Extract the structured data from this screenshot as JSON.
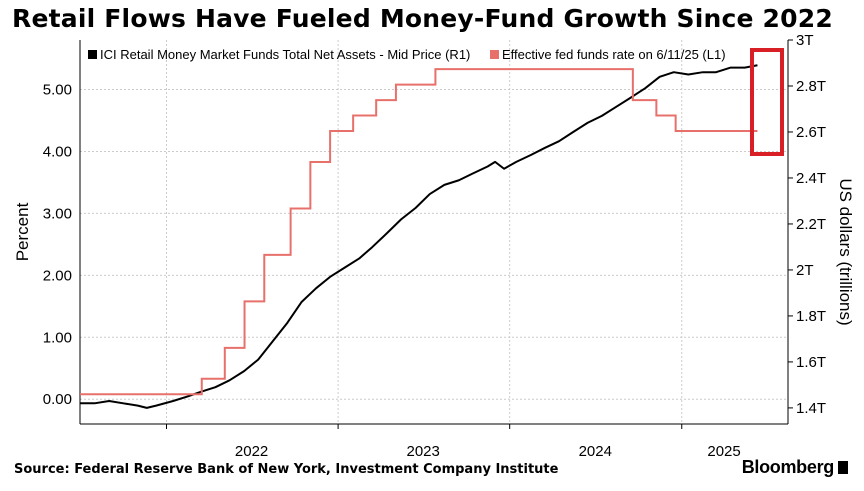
{
  "title": "Retail Flows Have Fueled Money-Fund Growth Since 2022",
  "source": "Source: Federal Reserve Bank of New York, Investment Company Institute",
  "brand": "Bloomberg",
  "colors": {
    "assets": "#000000",
    "fedfunds": "#e8706b",
    "highlight": "#d81f26",
    "grid": "#cccccc"
  },
  "chart_data": {
    "type": "line",
    "x_ticks": [
      "2022",
      "2023",
      "2024",
      "2025"
    ],
    "left_axis": {
      "label": "Percent",
      "ticks": [
        "0.00",
        "1.00",
        "2.00",
        "3.00",
        "4.00",
        "5.00"
      ],
      "range": [
        -0.4,
        5.8
      ]
    },
    "right_axis": {
      "label": "US dollars (trillions)",
      "ticks": [
        "1.4T",
        "1.6T",
        "1.8T",
        "2T",
        "2.2T",
        "2.4T",
        "2.6T",
        "2.8T",
        "3T"
      ],
      "range": [
        1.33,
        3.0
      ]
    },
    "grid": true,
    "legend_position": "top",
    "highlight_box": {
      "note": "red rectangle around latest values"
    },
    "series": [
      {
        "name": "ICI Retail Money Market Funds Total Net Assets - Mid Price (R1)",
        "axis": "right",
        "color": "#000000",
        "points": [
          [
            "2021-07-01",
            1.42
          ],
          [
            "2021-08-01",
            1.42
          ],
          [
            "2021-09-01",
            1.43
          ],
          [
            "2021-10-01",
            1.42
          ],
          [
            "2021-11-01",
            1.41
          ],
          [
            "2021-11-20",
            1.4
          ],
          [
            "2021-12-10",
            1.41
          ],
          [
            "2022-01-15",
            1.43
          ],
          [
            "2022-02-15",
            1.45
          ],
          [
            "2022-03-15",
            1.47
          ],
          [
            "2022-04-15",
            1.49
          ],
          [
            "2022-05-15",
            1.52
          ],
          [
            "2022-06-15",
            1.56
          ],
          [
            "2022-07-15",
            1.61
          ],
          [
            "2022-08-15",
            1.69
          ],
          [
            "2022-09-15",
            1.77
          ],
          [
            "2022-10-15",
            1.86
          ],
          [
            "2022-11-15",
            1.92
          ],
          [
            "2022-12-15",
            1.97
          ],
          [
            "2023-01-15",
            2.01
          ],
          [
            "2023-02-15",
            2.05
          ],
          [
            "2023-03-15",
            2.1
          ],
          [
            "2023-04-15",
            2.16
          ],
          [
            "2023-05-15",
            2.22
          ],
          [
            "2023-06-15",
            2.27
          ],
          [
            "2023-07-15",
            2.33
          ],
          [
            "2023-08-15",
            2.37
          ],
          [
            "2023-09-15",
            2.39
          ],
          [
            "2023-10-15",
            2.42
          ],
          [
            "2023-11-15",
            2.45
          ],
          [
            "2023-12-01",
            2.47
          ],
          [
            "2023-12-20",
            2.44
          ],
          [
            "2024-01-15",
            2.47
          ],
          [
            "2024-02-15",
            2.5
          ],
          [
            "2024-03-15",
            2.53
          ],
          [
            "2024-04-15",
            2.56
          ],
          [
            "2024-05-15",
            2.6
          ],
          [
            "2024-06-15",
            2.64
          ],
          [
            "2024-07-15",
            2.67
          ],
          [
            "2024-08-15",
            2.71
          ],
          [
            "2024-09-15",
            2.75
          ],
          [
            "2024-10-15",
            2.79
          ],
          [
            "2024-11-15",
            2.84
          ],
          [
            "2024-12-15",
            2.86
          ],
          [
            "2025-01-15",
            2.85
          ],
          [
            "2025-02-15",
            2.86
          ],
          [
            "2025-03-15",
            2.86
          ],
          [
            "2025-04-15",
            2.88
          ],
          [
            "2025-05-15",
            2.88
          ],
          [
            "2025-06-11",
            2.89
          ]
        ]
      },
      {
        "name": "Effective fed funds rate  on 6/11/25 (L1)",
        "axis": "left",
        "color": "#e8706b",
        "steps": [
          [
            "2021-07-01",
            0.08
          ],
          [
            "2022-03-17",
            0.33
          ],
          [
            "2022-05-05",
            0.83
          ],
          [
            "2022-06-16",
            1.58
          ],
          [
            "2022-07-28",
            2.33
          ],
          [
            "2022-09-22",
            3.08
          ],
          [
            "2022-11-03",
            3.83
          ],
          [
            "2022-12-15",
            4.33
          ],
          [
            "2023-02-02",
            4.58
          ],
          [
            "2023-03-23",
            4.83
          ],
          [
            "2023-05-04",
            5.08
          ],
          [
            "2023-07-27",
            5.33
          ],
          [
            "2024-09-19",
            4.83
          ],
          [
            "2024-11-08",
            4.58
          ],
          [
            "2024-12-19",
            4.33
          ],
          [
            "2025-06-11",
            4.33
          ]
        ]
      }
    ]
  }
}
